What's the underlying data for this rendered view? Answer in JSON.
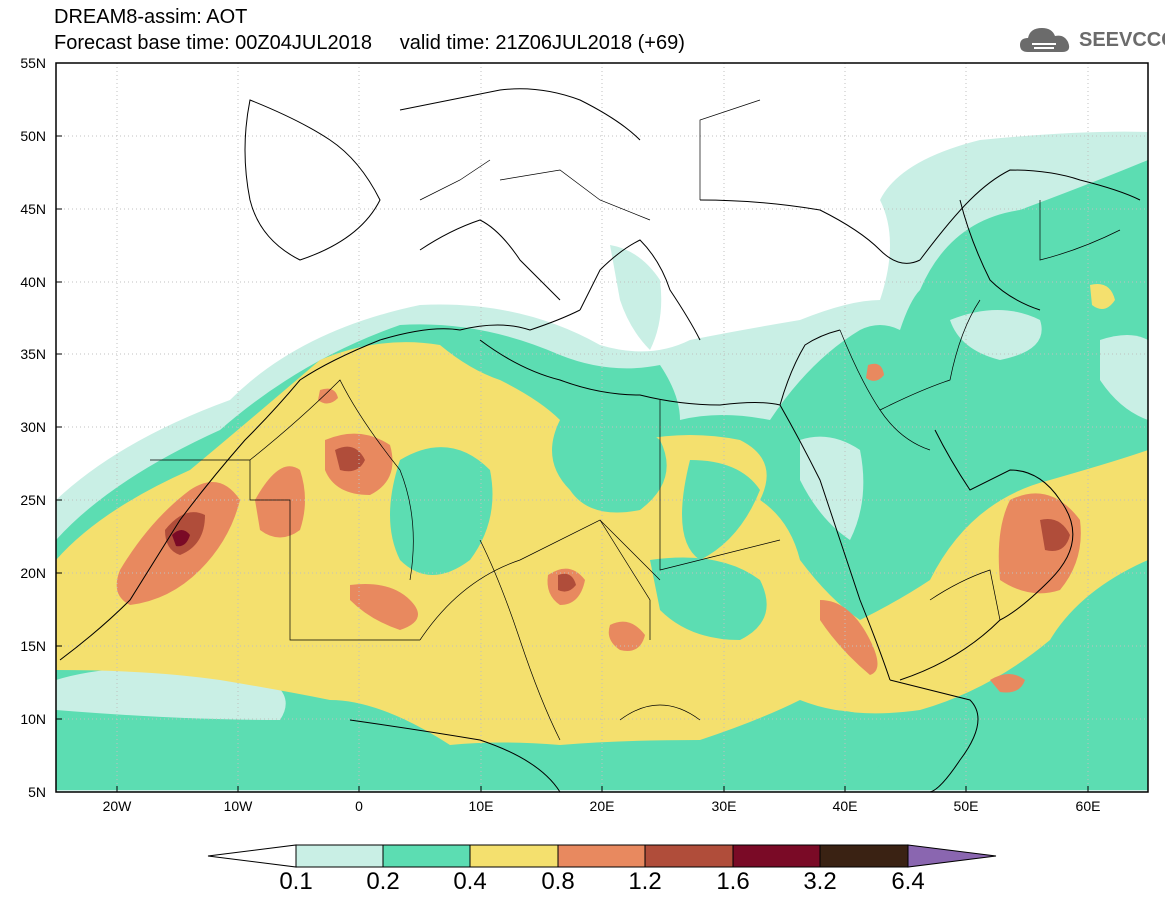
{
  "header": {
    "title_line1": "DREAM8-assim: AOT",
    "title_line2": "Forecast base time: 00Z04JUL2018     valid time: 21Z06JUL2018 (+69)",
    "logo_text": "SEEVCCC",
    "logo_icon": "cloud-icon"
  },
  "map": {
    "lat_labels": [
      "55N",
      "50N",
      "45N",
      "40N",
      "35N",
      "30N",
      "25N",
      "20N",
      "15N",
      "10N",
      "5N"
    ],
    "lon_labels": [
      "20W",
      "10W",
      "0",
      "10E",
      "20E",
      "30E",
      "40E",
      "50E",
      "60E"
    ],
    "lat_range": [
      5,
      55
    ],
    "lon_range": [
      -25,
      65
    ]
  },
  "colorbar": {
    "labels": [
      "0.1",
      "0.2",
      "0.4",
      "0.8",
      "1.2",
      "1.6",
      "3.2",
      "6.4"
    ],
    "colors": [
      "#ffffff",
      "#c9efe5",
      "#5cddb2",
      "#f4e06e",
      "#e8895f",
      "#b04d3a",
      "#7a0a26",
      "#3a2213",
      "#8a66b0"
    ]
  }
}
